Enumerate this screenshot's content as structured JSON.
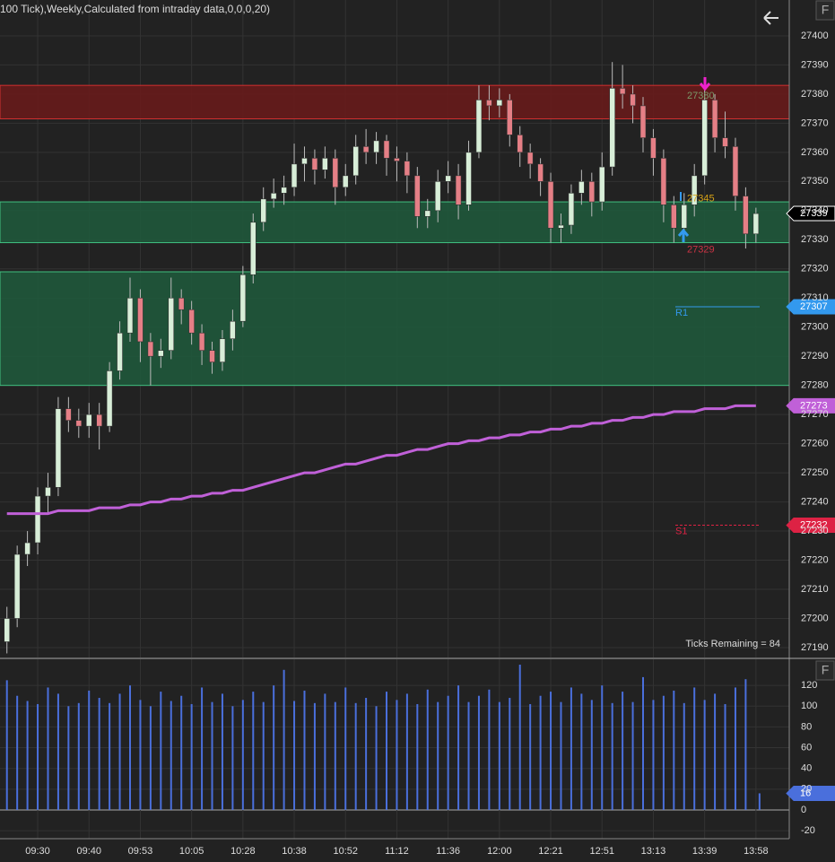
{
  "header": "100 Tick),Weekly,Calculated from intraday data,0,0,0,20)",
  "status": "Ticks Remaining = 84",
  "buttons": [
    "F",
    "F"
  ],
  "chart_data": [
    {
      "type": "candlestick",
      "ylim": [
        27186.6,
        27412.3
      ],
      "yticks": [
        27190,
        27200,
        27210,
        27220,
        27230,
        27240,
        27250,
        27260,
        27270,
        27280,
        27290,
        27300,
        27310,
        27320,
        27330,
        27340,
        27350,
        27360,
        27370,
        27380,
        27390,
        27400
      ],
      "grid": true,
      "up_color": "#d8eed8",
      "down_color": "#e57f86",
      "candles": {
        "open": [
          27192,
          27200,
          27222,
          27226,
          27242,
          27245,
          27272,
          27268,
          27266,
          27270,
          27266,
          27285,
          27298,
          27310,
          27295,
          27290,
          27292,
          27310,
          27306,
          27298,
          27292,
          27288,
          27296,
          27302,
          27318,
          27336,
          27344,
          27346,
          27348,
          27356,
          27358,
          27354,
          27358,
          27348,
          27352,
          27362,
          27360,
          27364,
          27358,
          27357,
          27352,
          27338,
          27340,
          27350,
          27352,
          27342,
          27360,
          27378,
          27376,
          27378,
          27366,
          27360,
          27356,
          27350,
          27334,
          27335,
          27346,
          27350,
          27343,
          27355,
          27382,
          27380,
          27376,
          27365,
          27358,
          27342,
          27334,
          27342,
          27352,
          27378,
          27365,
          27362,
          27345,
          27332
        ],
        "high": [
          27204,
          27225,
          27230,
          27245,
          27250,
          27276,
          27276,
          27272,
          27274,
          27274,
          27288,
          27302,
          27317,
          27313,
          27298,
          27296,
          27317,
          27313,
          27309,
          27301,
          27295,
          27299,
          27306,
          27321,
          27339,
          27348,
          27351,
          27352,
          27363,
          27362,
          27361,
          27362,
          27361,
          27356,
          27366,
          27368,
          27367,
          27366,
          27362,
          27360,
          27355,
          27344,
          27354,
          27357,
          27356,
          27364,
          27383,
          27383,
          27382,
          27380,
          27369,
          27363,
          27358,
          27353,
          27339,
          27349,
          27354,
          27353,
          27360,
          27391,
          27390,
          27383,
          27379,
          27368,
          27361,
          27345,
          27346,
          27356,
          27382,
          27380,
          27374,
          27365,
          27348,
          27341
        ],
        "low": [
          27188,
          27197,
          27218,
          27222,
          27236,
          27242,
          27264,
          27262,
          27262,
          27258,
          27264,
          27282,
          27295,
          27288,
          27280,
          27286,
          27289,
          27301,
          27294,
          27287,
          27284,
          27285,
          27292,
          27300,
          27315,
          27333,
          27341,
          27342,
          27345,
          27350,
          27349,
          27351,
          27342,
          27345,
          27349,
          27356,
          27356,
          27352,
          27350,
          27346,
          27334,
          27334,
          27336,
          27346,
          27337,
          27340,
          27358,
          27371,
          27372,
          27362,
          27355,
          27351,
          27345,
          27329,
          27329,
          27332,
          27342,
          27338,
          27340,
          27352,
          27375,
          27370,
          27360,
          27352,
          27336,
          27329,
          27330,
          27338,
          27349,
          27360,
          27358,
          27340,
          27327,
          27329
        ],
        "close": [
          27200,
          27222,
          27226,
          27242,
          27245,
          27272,
          27268,
          27266,
          27270,
          27266,
          27285,
          27298,
          27310,
          27295,
          27290,
          27292,
          27310,
          27306,
          27298,
          27292,
          27288,
          27296,
          27302,
          27318,
          27336,
          27344,
          27346,
          27348,
          27356,
          27358,
          27354,
          27358,
          27348,
          27352,
          27362,
          27360,
          27364,
          27358,
          27357,
          27352,
          27338,
          27340,
          27350,
          27352,
          27342,
          27360,
          27378,
          27376,
          27378,
          27366,
          27360,
          27356,
          27350,
          27334,
          27335,
          27346,
          27350,
          27343,
          27355,
          27382,
          27380,
          27376,
          27365,
          27358,
          27342,
          27334,
          27342,
          27352,
          27378,
          27365,
          27362,
          27345,
          27332,
          27339
        ]
      },
      "ma": {
        "color": "#c060d8",
        "values": [
          27236,
          27236,
          27236,
          27236,
          27236,
          27237,
          27237,
          27237,
          27237,
          27238,
          27238,
          27238,
          27239,
          27239,
          27240,
          27240,
          27241,
          27241,
          27242,
          27242,
          27243,
          27243,
          27244,
          27244,
          27245,
          27246,
          27247,
          27248,
          27249,
          27250,
          27250,
          27251,
          27252,
          27253,
          27253,
          27254,
          27255,
          27256,
          27256,
          27257,
          27258,
          27258,
          27259,
          27260,
          27260,
          27261,
          27261,
          27262,
          27262,
          27263,
          27263,
          27264,
          27264,
          27265,
          27265,
          27266,
          27266,
          27267,
          27267,
          27268,
          27268,
          27269,
          27269,
          27270,
          27270,
          27271,
          27271,
          27271,
          27272,
          27272,
          27272,
          27273,
          27273,
          27273
        ]
      },
      "zones": [
        {
          "from": 27371.5,
          "to": 27383,
          "color": "#6b1a1a"
        },
        {
          "from": 27329,
          "to": 27343,
          "color": "#1e5a3c"
        },
        {
          "from": 27280,
          "to": 27319,
          "color": "#1e5a3c"
        }
      ],
      "pivots": [
        {
          "name": "R1",
          "value": 27307,
          "color": "#3399ee"
        },
        {
          "name": "S1",
          "value": 27232,
          "color": "#dd2244"
        }
      ],
      "annotations": [
        {
          "value": 27380,
          "color": "#7a9a6a"
        },
        {
          "value": 27345,
          "color": "#d4a017"
        },
        {
          "value": 27329,
          "color": "#cc3344"
        }
      ]
    },
    {
      "type": "bar",
      "color": "#4a6fdc",
      "ylim": [
        -27.7,
        145.2
      ],
      "yticks": [
        -20,
        0,
        20,
        40,
        60,
        80,
        100,
        120
      ],
      "categories": [
        null,
        null,
        null,
        "09:30",
        null,
        null,
        null,
        null,
        "09:40",
        null,
        null,
        null,
        null,
        "09:53",
        null,
        null,
        null,
        null,
        "10:05",
        null,
        null,
        null,
        null,
        "10:28",
        null,
        null,
        null,
        null,
        "10:38",
        null,
        null,
        null,
        null,
        "10:52",
        null,
        null,
        null,
        null,
        "11:12",
        null,
        null,
        null,
        null,
        "11:36",
        null,
        null,
        null,
        null,
        "12:00",
        null,
        null,
        null,
        null,
        "12:21",
        null,
        null,
        null,
        null,
        "12:51",
        null,
        null,
        null,
        null,
        "13:13",
        null,
        null,
        null,
        null,
        "13:39",
        null,
        null,
        null,
        null,
        "13:58"
      ],
      "values": [
        125,
        110,
        105,
        102,
        118,
        112,
        100,
        103,
        115,
        108,
        103,
        112,
        120,
        106,
        100,
        114,
        105,
        110,
        102,
        118,
        104,
        112,
        100,
        106,
        114,
        104,
        120,
        135,
        105,
        115,
        103,
        112,
        104,
        118,
        103,
        108,
        100,
        114,
        106,
        112,
        102,
        116,
        104,
        110,
        120,
        104,
        110,
        116,
        104,
        108,
        140,
        102,
        110,
        114,
        104,
        118,
        112,
        106,
        120,
        103,
        114,
        104,
        128,
        106,
        110,
        115,
        103,
        118,
        106,
        112,
        102,
        118,
        126,
        16
      ]
    }
  ]
}
